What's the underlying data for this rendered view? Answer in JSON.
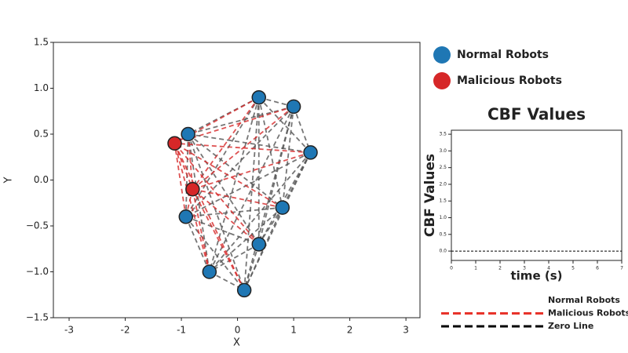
{
  "chart_data": [
    {
      "type": "scatter",
      "xlabel": "X",
      "ylabel": "Y",
      "xlim": [
        -3.28,
        3.25
      ],
      "ylim": [
        -1.5,
        1.5
      ],
      "xticks": [
        -3,
        -2,
        -1,
        0,
        1,
        2,
        3
      ],
      "yticks": [
        {
          "value": -1.5,
          "label": "−1.5"
        },
        {
          "value": -1.0,
          "label": "−1.0"
        },
        {
          "value": -0.5,
          "label": "−0.5"
        },
        {
          "value": 0.0,
          "label": "0.0"
        },
        {
          "value": 0.5,
          "label": "0.5"
        },
        {
          "value": 1.0,
          "label": "1.0"
        },
        {
          "value": 1.5,
          "label": "1.5"
        }
      ],
      "legend": "outside right",
      "series": [
        {
          "name": "Normal Robots",
          "color": "#1f77b4",
          "x": [
            0.38,
            1.0,
            -0.88,
            1.3,
            0.8,
            -0.92,
            0.38,
            -0.5,
            0.12
          ],
          "values": [
            0.9,
            0.8,
            0.5,
            0.3,
            -0.3,
            -0.4,
            -0.7,
            -1.0,
            -1.2
          ]
        },
        {
          "name": "Malicious Robots",
          "color": "#d62728",
          "x": [
            -1.12,
            -0.8
          ],
          "values": [
            0.4,
            -0.1
          ]
        }
      ]
    },
    {
      "type": "line",
      "title": "CBF Values",
      "xlabel": "time (s)",
      "ylabel": "CBF Values",
      "xlim": [
        0,
        7
      ],
      "ylim": [
        -0.28,
        3.62
      ],
      "xticks": [
        0,
        1,
        2,
        3,
        4,
        5,
        6,
        7
      ],
      "yticks": [
        {
          "value": 0.0,
          "label": "0.0"
        },
        {
          "value": 0.5,
          "label": "0.5"
        },
        {
          "value": 1.0,
          "label": "1.0"
        },
        {
          "value": 1.5,
          "label": "1.5"
        },
        {
          "value": 2.0,
          "label": "2.0"
        },
        {
          "value": 2.5,
          "label": "2.5"
        },
        {
          "value": 3.0,
          "label": "3.0"
        },
        {
          "value": 3.5,
          "label": "3.5"
        }
      ],
      "x": [
        0,
        7
      ],
      "series": [
        {
          "name": "Normal Robots",
          "color": "rainbow",
          "values": [
            null,
            null
          ]
        },
        {
          "name": "Malicious Robots",
          "color": "#e8332a",
          "dashed": true,
          "values": [
            null,
            null
          ]
        },
        {
          "name": "Zero Line",
          "color": "#000000",
          "dashed": true,
          "values": [
            0,
            0
          ]
        }
      ]
    }
  ]
}
